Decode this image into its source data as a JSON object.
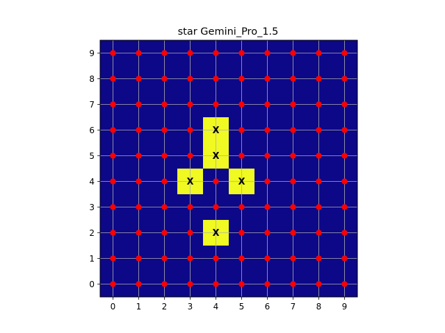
{
  "chart_data": {
    "type": "heatmap",
    "title": "star Gemini_Pro_1.5",
    "xlabel": "",
    "ylabel": "",
    "x_ticks": [
      0,
      1,
      2,
      3,
      4,
      5,
      6,
      7,
      8,
      9
    ],
    "y_ticks": [
      0,
      1,
      2,
      3,
      4,
      5,
      6,
      7,
      8,
      9
    ],
    "xlim": [
      -0.5,
      9.5
    ],
    "ylim": [
      -0.5,
      9.5
    ],
    "grid": true,
    "background_color": "#0d0887",
    "highlight_color": "#f0f921",
    "point_color": "#ff0000",
    "grid_color": "#b0b0b0",
    "highlighted_cells": [
      {
        "x": 4,
        "y": 6,
        "label": "X"
      },
      {
        "x": 4,
        "y": 5,
        "label": "X"
      },
      {
        "x": 3,
        "y": 4,
        "label": "X"
      },
      {
        "x": 5,
        "y": 4,
        "label": "X"
      },
      {
        "x": 4,
        "y": 2,
        "label": "X"
      }
    ],
    "points": [
      [
        0,
        0
      ],
      [
        1,
        0
      ],
      [
        2,
        0
      ],
      [
        3,
        0
      ],
      [
        4,
        0
      ],
      [
        5,
        0
      ],
      [
        6,
        0
      ],
      [
        7,
        0
      ],
      [
        8,
        0
      ],
      [
        9,
        0
      ],
      [
        0,
        1
      ],
      [
        1,
        1
      ],
      [
        2,
        1
      ],
      [
        3,
        1
      ],
      [
        4,
        1
      ],
      [
        5,
        1
      ],
      [
        6,
        1
      ],
      [
        7,
        1
      ],
      [
        8,
        1
      ],
      [
        9,
        1
      ],
      [
        0,
        2
      ],
      [
        1,
        2
      ],
      [
        2,
        2
      ],
      [
        3,
        2
      ],
      [
        5,
        2
      ],
      [
        6,
        2
      ],
      [
        7,
        2
      ],
      [
        8,
        2
      ],
      [
        9,
        2
      ],
      [
        0,
        3
      ],
      [
        1,
        3
      ],
      [
        2,
        3
      ],
      [
        3,
        3
      ],
      [
        4,
        3
      ],
      [
        5,
        3
      ],
      [
        6,
        3
      ],
      [
        7,
        3
      ],
      [
        8,
        3
      ],
      [
        9,
        3
      ],
      [
        0,
        4
      ],
      [
        1,
        4
      ],
      [
        2,
        4
      ],
      [
        4,
        4
      ],
      [
        6,
        4
      ],
      [
        7,
        4
      ],
      [
        8,
        4
      ],
      [
        9,
        4
      ],
      [
        0,
        5
      ],
      [
        1,
        5
      ],
      [
        2,
        5
      ],
      [
        3,
        5
      ],
      [
        5,
        5
      ],
      [
        6,
        5
      ],
      [
        7,
        5
      ],
      [
        8,
        5
      ],
      [
        9,
        5
      ],
      [
        0,
        6
      ],
      [
        1,
        6
      ],
      [
        2,
        6
      ],
      [
        3,
        6
      ],
      [
        5,
        6
      ],
      [
        6,
        6
      ],
      [
        7,
        6
      ],
      [
        8,
        6
      ],
      [
        9,
        6
      ],
      [
        0,
        7
      ],
      [
        1,
        7
      ],
      [
        2,
        7
      ],
      [
        3,
        7
      ],
      [
        4,
        7
      ],
      [
        5,
        7
      ],
      [
        6,
        7
      ],
      [
        7,
        7
      ],
      [
        8,
        7
      ],
      [
        9,
        7
      ],
      [
        0,
        8
      ],
      [
        1,
        8
      ],
      [
        2,
        8
      ],
      [
        3,
        8
      ],
      [
        4,
        8
      ],
      [
        5,
        8
      ],
      [
        6,
        8
      ],
      [
        7,
        8
      ],
      [
        8,
        8
      ],
      [
        9,
        8
      ],
      [
        0,
        9
      ],
      [
        1,
        9
      ],
      [
        2,
        9
      ],
      [
        3,
        9
      ],
      [
        4,
        9
      ],
      [
        5,
        9
      ],
      [
        6,
        9
      ],
      [
        7,
        9
      ],
      [
        8,
        9
      ],
      [
        9,
        9
      ]
    ]
  }
}
